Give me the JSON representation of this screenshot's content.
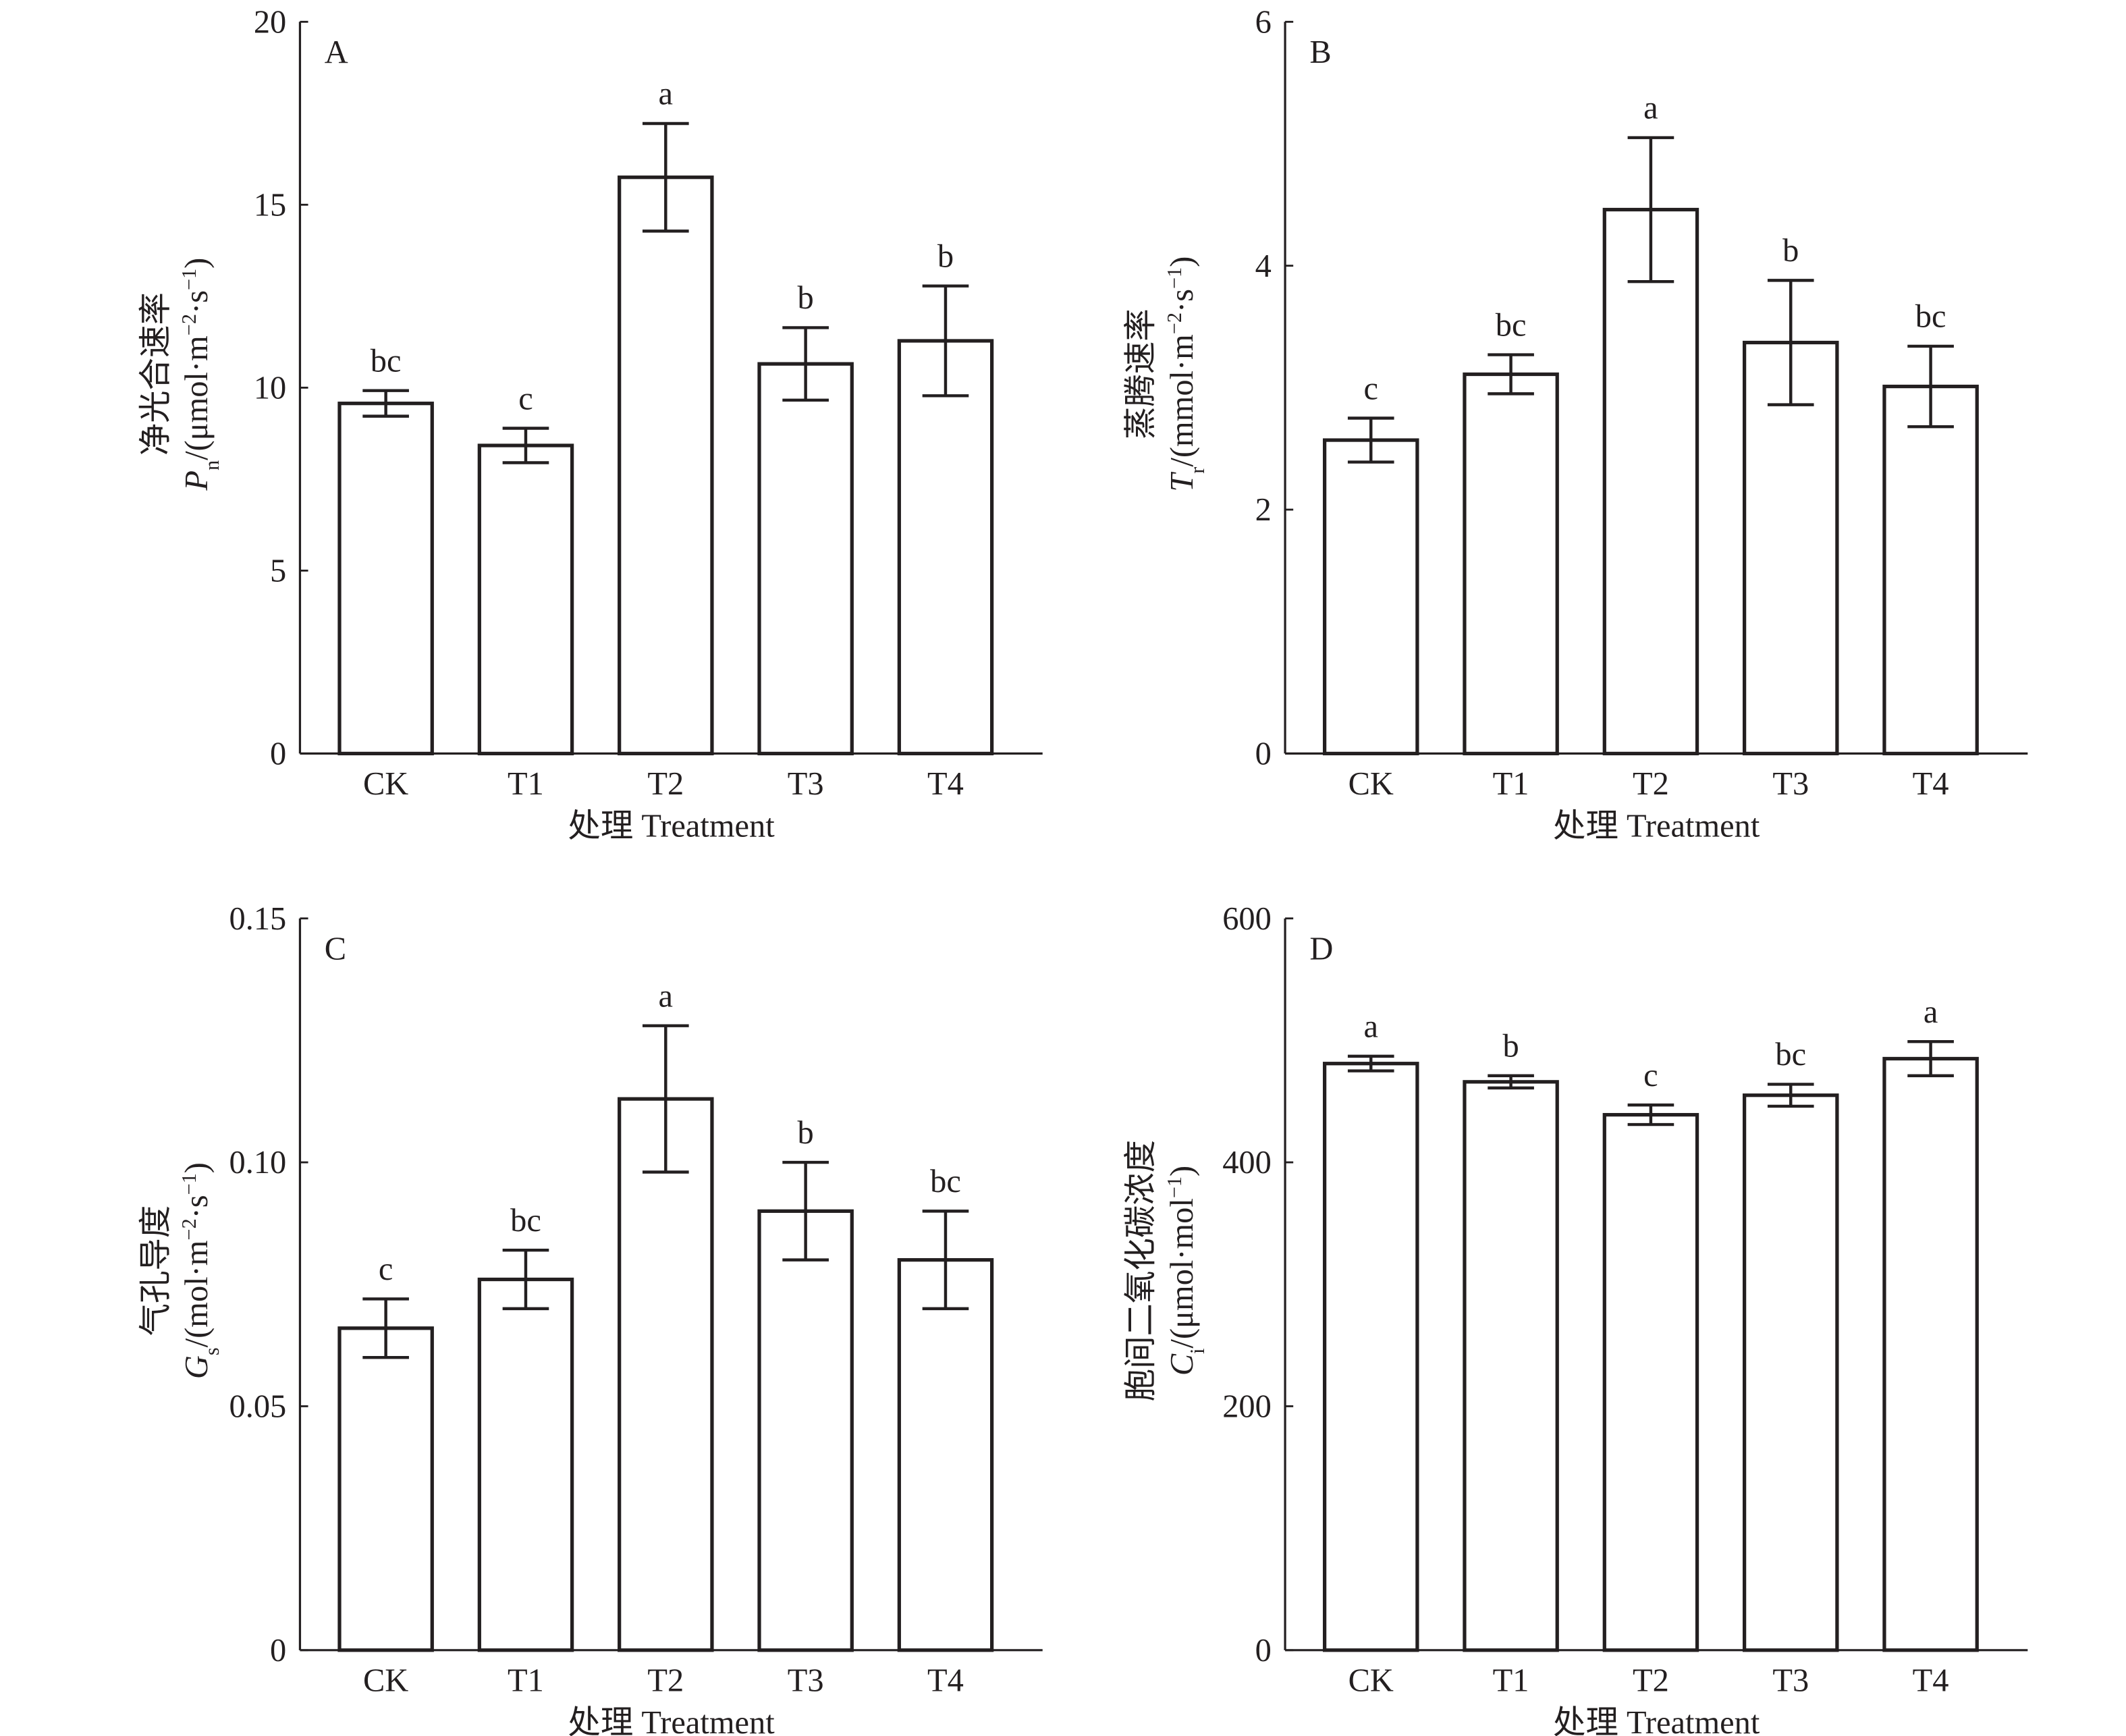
{
  "chart_data": [
    {
      "type": "bar",
      "panel_label": "A",
      "categories": [
        "CK",
        "T1",
        "T2",
        "T3",
        "T4"
      ],
      "values": [
        9.57,
        8.42,
        15.75,
        10.65,
        11.28
      ],
      "errors": [
        0.35,
        0.47,
        1.47,
        0.99,
        1.5
      ],
      "letters": [
        "bc",
        "c",
        "a",
        "b",
        "b"
      ],
      "ylim": [
        0,
        20
      ],
      "yticks": [
        0,
        5,
        10,
        15,
        20
      ],
      "ytick_labels": [
        "0",
        "5",
        "10",
        "15",
        "20"
      ],
      "xlabel": "处理 Treatment",
      "ylabel_cn": "净光合速率",
      "ylabel_parts": [
        {
          "t": "P",
          "s": "i"
        },
        {
          "t": "n",
          "s": "sub"
        },
        {
          "t": "/(μmol·m",
          "s": ""
        },
        {
          "t": "−2",
          "s": "sup"
        },
        {
          "t": "·s",
          "s": ""
        },
        {
          "t": "−1",
          "s": "sup"
        },
        {
          "t": ")",
          "s": ""
        }
      ],
      "grid": false
    },
    {
      "type": "bar",
      "panel_label": "B",
      "categories": [
        "CK",
        "T1",
        "T2",
        "T3",
        "T4"
      ],
      "values": [
        2.57,
        3.11,
        4.46,
        3.37,
        3.01
      ],
      "errors": [
        0.18,
        0.16,
        0.59,
        0.51,
        0.33
      ],
      "letters": [
        "c",
        "bc",
        "a",
        "b",
        "bc"
      ],
      "ylim": [
        0,
        6
      ],
      "yticks": [
        0,
        2,
        4,
        6
      ],
      "ytick_labels": [
        "0",
        "2",
        "4",
        "6"
      ],
      "xlabel": "处理 Treatment",
      "ylabel_cn": "蒸腾速率",
      "ylabel_parts": [
        {
          "t": "T",
          "s": "i"
        },
        {
          "t": "r",
          "s": "sub"
        },
        {
          "t": "/(mmol·m",
          "s": ""
        },
        {
          "t": "−2",
          "s": "sup"
        },
        {
          "t": "·s",
          "s": ""
        },
        {
          "t": "−1",
          "s": "sup"
        },
        {
          "t": ")",
          "s": ""
        }
      ],
      "grid": false
    },
    {
      "type": "bar",
      "panel_label": "C",
      "categories": [
        "CK",
        "T1",
        "T2",
        "T3",
        "T4"
      ],
      "values": [
        0.066,
        0.076,
        0.113,
        0.09,
        0.08
      ],
      "errors": [
        0.006,
        0.006,
        0.015,
        0.01,
        0.01
      ],
      "letters": [
        "c",
        "bc",
        "a",
        "b",
        "bc"
      ],
      "ylim": [
        0,
        0.15
      ],
      "yticks": [
        0,
        0.05,
        0.1,
        0.15
      ],
      "ytick_labels": [
        "0",
        "0.05",
        "0.10",
        "0.15"
      ],
      "xlabel": "处理 Treatment",
      "ylabel_cn": "气孔导度",
      "ylabel_parts": [
        {
          "t": "G",
          "s": "i"
        },
        {
          "t": "s",
          "s": "sub"
        },
        {
          "t": "/(mol·m",
          "s": ""
        },
        {
          "t": "−2",
          "s": "sup"
        },
        {
          "t": "·s",
          "s": ""
        },
        {
          "t": "−1",
          "s": "sup"
        },
        {
          "t": ")",
          "s": ""
        }
      ],
      "grid": false
    },
    {
      "type": "bar",
      "panel_label": "D",
      "categories": [
        "CK",
        "T1",
        "T2",
        "T3",
        "T4"
      ],
      "values": [
        481,
        466,
        439,
        455,
        485
      ],
      "errors": [
        6,
        5,
        8,
        9,
        14
      ],
      "letters": [
        "a",
        "b",
        "c",
        "bc",
        "a"
      ],
      "ylim": [
        0,
        600
      ],
      "yticks": [
        0,
        200,
        400,
        600
      ],
      "ytick_labels": [
        "0",
        "200",
        "400",
        "600"
      ],
      "xlabel": "处理 Treatment",
      "ylabel_cn": "胞间二氧化碳浓度",
      "ylabel_parts": [
        {
          "t": "C",
          "s": "i"
        },
        {
          "t": "i",
          "s": "sub"
        },
        {
          "t": "/(μmol·mol",
          "s": ""
        },
        {
          "t": "−1",
          "s": "sup"
        },
        {
          "t": ")",
          "s": ""
        }
      ],
      "grid": false
    }
  ],
  "colors": {
    "ink": "#231f20",
    "bar_fill": "#ffffff"
  }
}
